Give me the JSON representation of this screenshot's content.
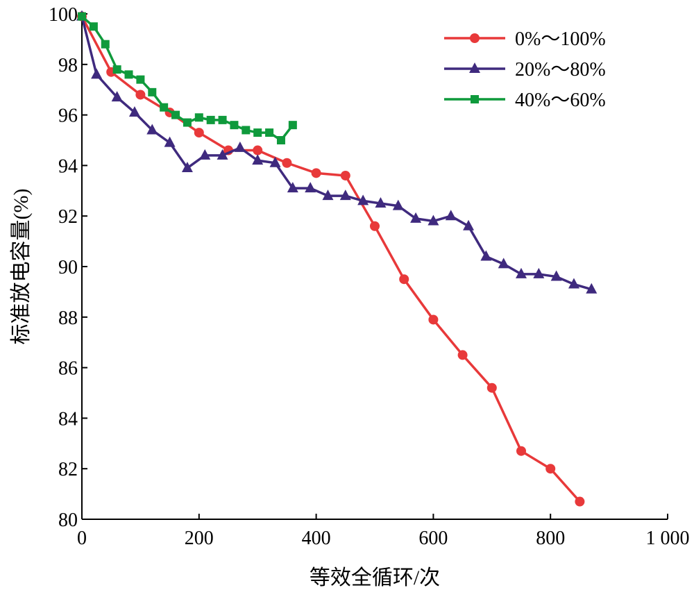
{
  "chart_data": {
    "type": "line",
    "xlabel": "等效全循环/次",
    "ylabel": "标准放电容量(%)",
    "xlim": [
      0,
      1000
    ],
    "ylim": [
      80,
      100
    ],
    "x_ticks": [
      "0",
      "200",
      "400",
      "600",
      "800",
      "1 000"
    ],
    "x_tick_values": [
      0,
      200,
      400,
      600,
      800,
      1000
    ],
    "y_ticks": [
      "80",
      "82",
      "84",
      "86",
      "88",
      "90",
      "92",
      "94",
      "96",
      "98",
      "100"
    ],
    "y_tick_values": [
      80,
      82,
      84,
      86,
      88,
      90,
      92,
      94,
      96,
      98,
      100
    ],
    "grid": false,
    "legend_position": "top-right",
    "series": [
      {
        "name": "0%～100%",
        "color": "#e8393a",
        "marker": "circle",
        "x": [
          0,
          50,
          100,
          150,
          200,
          250,
          300,
          350,
          400,
          450,
          500,
          550,
          600,
          650,
          700,
          750,
          800,
          850
        ],
        "y": [
          99.9,
          97.7,
          96.8,
          96.1,
          95.3,
          94.6,
          94.6,
          94.1,
          93.7,
          93.6,
          91.6,
          89.5,
          87.9,
          86.5,
          85.2,
          82.7,
          82.0,
          80.7
        ]
      },
      {
        "name": "20%～80%",
        "color": "#3f2a7e",
        "marker": "triangle",
        "x": [
          0,
          25,
          60,
          90,
          120,
          150,
          180,
          210,
          240,
          270,
          300,
          330,
          360,
          390,
          420,
          450,
          480,
          510,
          540,
          570,
          600,
          630,
          660,
          690,
          720,
          750,
          780,
          810,
          840,
          870
        ],
        "y": [
          99.9,
          97.6,
          96.7,
          96.1,
          95.4,
          94.9,
          93.9,
          94.4,
          94.4,
          94.7,
          94.2,
          94.1,
          93.1,
          93.1,
          92.8,
          92.8,
          92.6,
          92.5,
          92.4,
          91.9,
          91.8,
          92.0,
          91.6,
          90.4,
          90.1,
          89.7,
          89.7,
          89.6,
          89.3,
          89.1
        ]
      },
      {
        "name": "40%～60%",
        "color": "#0f9a3c",
        "marker": "square",
        "x": [
          0,
          20,
          40,
          60,
          80,
          100,
          120,
          140,
          160,
          180,
          200,
          220,
          240,
          260,
          280,
          300,
          320,
          340,
          360
        ],
        "y": [
          99.9,
          99.5,
          98.8,
          97.8,
          97.6,
          97.4,
          96.9,
          96.3,
          96.0,
          95.7,
          95.9,
          95.8,
          95.8,
          95.6,
          95.4,
          95.3,
          95.3,
          95.0,
          95.6
        ]
      }
    ]
  }
}
